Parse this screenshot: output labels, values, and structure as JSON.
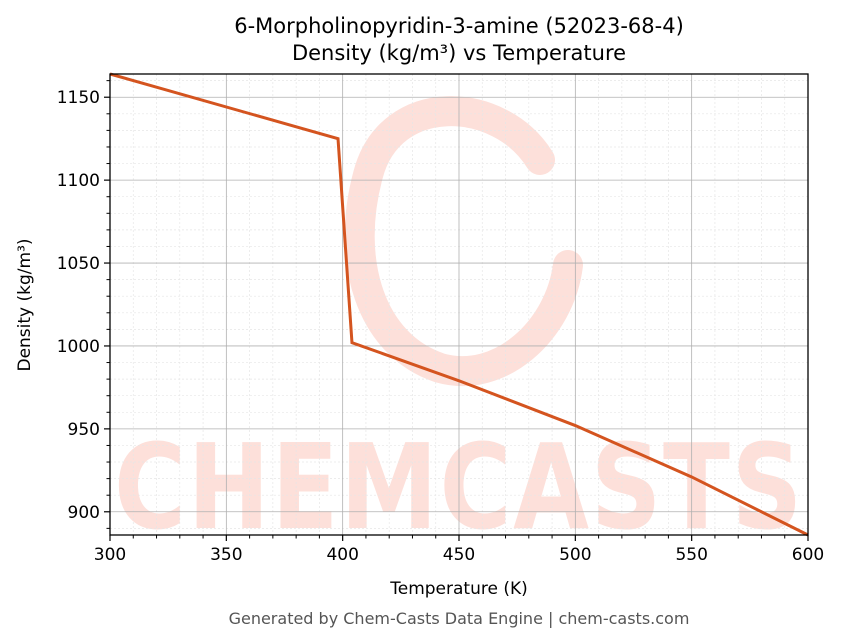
{
  "title_line1": "6-Morpholinopyridin-3-amine (52023-68-4)",
  "title_line2": "Density (kg/m³) vs Temperature",
  "footer": "Generated by Chem-Casts Data Engine | chem-casts.com",
  "watermark": "CHEMCASTS",
  "colors": {
    "line": "#d4541f",
    "watermark": "#fde0da",
    "grid_major": "#b0b0b0",
    "grid_minor": "#e6e6e6"
  },
  "chart_data": {
    "type": "line",
    "xlabel": "Temperature (K)",
    "ylabel": "Density (kg/m³)",
    "xlim": [
      300,
      600
    ],
    "ylim": [
      886,
      1164
    ],
    "xticks": [
      300,
      350,
      400,
      450,
      500,
      550,
      600
    ],
    "yticks": [
      900,
      950,
      1000,
      1050,
      1100,
      1150
    ],
    "grid": true,
    "legend": "none",
    "series": [
      {
        "x": [
          300,
          398,
          404,
          450,
          500,
          550,
          600
        ],
        "y": [
          1164,
          1125,
          1002,
          979,
          952,
          921,
          886
        ]
      }
    ]
  }
}
